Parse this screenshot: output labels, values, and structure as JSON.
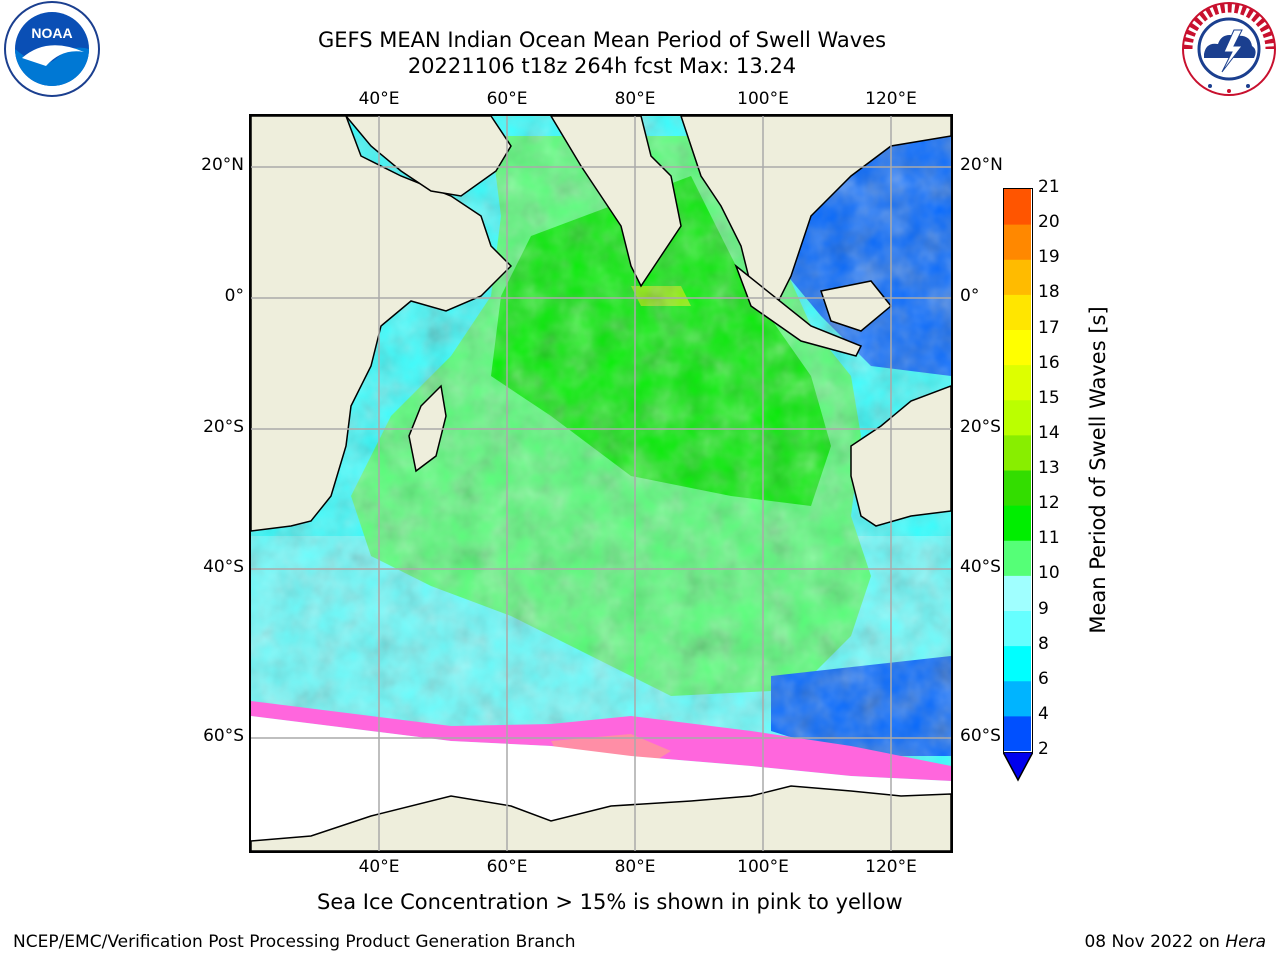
{
  "title_line1": "GEFS MEAN Indian Ocean Mean Period of Swell Waves",
  "title_line2": "20221106 t18z 264h fcst   Max: 13.24",
  "logos": {
    "left": {
      "icon": "noaa-logo-icon",
      "text": "NOAA"
    },
    "right": {
      "icon": "nws-logo-icon",
      "text": "NATIONAL WEATHER SERVICE"
    }
  },
  "map": {
    "lon_labels": [
      "40°E",
      "60°E",
      "80°E",
      "100°E",
      "120°E"
    ],
    "lat_labels": [
      "20°N",
      "0°",
      "20°S",
      "40°S",
      "60°S"
    ],
    "lon_range": [
      20,
      130
    ],
    "lat_range": [
      -73,
      28
    ],
    "land_color": "#eeeedc",
    "ocean_field_colors": [
      "#00ff66",
      "#66ff66",
      "#33ffff",
      "#00ccff",
      "#0066ff"
    ]
  },
  "colorbar": {
    "label": "Mean Period of Swell Waves [s]",
    "ticks": [
      "2",
      "4",
      "6",
      "8",
      "9",
      "10",
      "11",
      "12",
      "13",
      "14",
      "15",
      "16",
      "17",
      "18",
      "19",
      "20",
      "21"
    ],
    "colors": [
      "#0050ff",
      "#00b4ff",
      "#00ffff",
      "#66ffff",
      "#a0ffff",
      "#55ff77",
      "#00ee00",
      "#33dd00",
      "#88ee00",
      "#bbff00",
      "#ddff00",
      "#ffff00",
      "#ffe600",
      "#ffbb00",
      "#ff8800",
      "#ff5500",
      "#ff2200",
      "#ff0000"
    ],
    "extend_color": "#0000ee"
  },
  "ice_note": "Sea Ice Concentration > 15% is shown in pink to yellow",
  "footer": {
    "left": "NCEP/EMC/Verification Post Processing Product Generation Branch",
    "date": "08 Nov 2022 on ",
    "host": "Hera"
  }
}
